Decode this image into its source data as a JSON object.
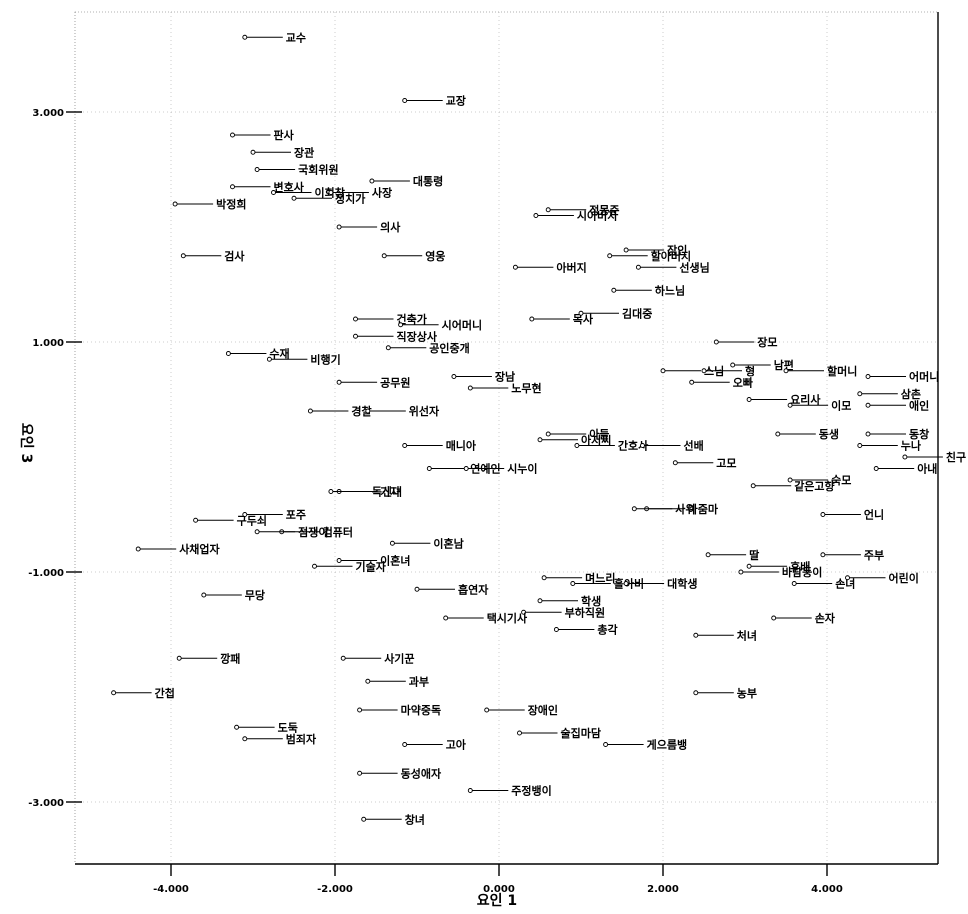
{
  "chart_data": {
    "type": "scatter",
    "title": "",
    "xlabel": "요인 1",
    "ylabel": "요인 3",
    "xlim": [
      -5.1,
      5.3
    ],
    "ylim": [
      -3.55,
      4.05
    ],
    "xticks": [
      -4000,
      -2000,
      0,
      2000,
      4000
    ],
    "yticks": [
      -3000,
      -1000,
      1000,
      3000
    ],
    "xtick_labels": [
      "-4.000",
      "-2.000",
      "0.000",
      "2.000",
      "4.000"
    ],
    "ytick_labels": [
      "-3.000",
      "-1.000",
      "1.000",
      "3.000"
    ],
    "grid": "dotted",
    "points": [
      {
        "label": "교수",
        "x": -3.1,
        "y": 3.65
      },
      {
        "label": "교장",
        "x": -1.15,
        "y": 3.1
      },
      {
        "label": "판사",
        "x": -3.25,
        "y": 2.8
      },
      {
        "label": "장관",
        "x": -3.0,
        "y": 2.65
      },
      {
        "label": "국회위원",
        "x": -2.95,
        "y": 2.5
      },
      {
        "label": "변호사",
        "x": -3.25,
        "y": 2.35
      },
      {
        "label": "대통령",
        "x": -1.55,
        "y": 2.4
      },
      {
        "label": "정몽준",
        "x": 0.6,
        "y": 2.15
      },
      {
        "label": "박정희",
        "x": -3.95,
        "y": 2.2
      },
      {
        "label": "이회창",
        "x": -2.75,
        "y": 2.3
      },
      {
        "label": "사장",
        "x": -2.05,
        "y": 2.3
      },
      {
        "label": "정치가",
        "x": -2.5,
        "y": 2.25
      },
      {
        "label": "의사",
        "x": -1.95,
        "y": 2.0
      },
      {
        "label": "시아버지",
        "x": 0.45,
        "y": 2.1
      },
      {
        "label": "장인",
        "x": 1.55,
        "y": 1.8
      },
      {
        "label": "검사",
        "x": -3.85,
        "y": 1.75
      },
      {
        "label": "영웅",
        "x": -1.4,
        "y": 1.75
      },
      {
        "label": "할아버지",
        "x": 1.35,
        "y": 1.75
      },
      {
        "label": "아버지",
        "x": 0.2,
        "y": 1.65
      },
      {
        "label": "선생님",
        "x": 1.7,
        "y": 1.65
      },
      {
        "label": "건축가",
        "x": -1.75,
        "y": 1.2
      },
      {
        "label": "하느님",
        "x": 1.4,
        "y": 1.45
      },
      {
        "label": "목사",
        "x": 0.4,
        "y": 1.2
      },
      {
        "label": "김대중",
        "x": 1.0,
        "y": 1.25
      },
      {
        "label": "장모",
        "x": 2.65,
        "y": 1.0
      },
      {
        "label": "시어머니",
        "x": -1.2,
        "y": 1.15
      },
      {
        "label": "직장상사",
        "x": -1.75,
        "y": 1.05
      },
      {
        "label": "공인중개",
        "x": -1.35,
        "y": 0.95
      },
      {
        "label": "남편",
        "x": 2.85,
        "y": 0.8
      },
      {
        "label": "할머니",
        "x": 3.5,
        "y": 0.75
      },
      {
        "label": "스님",
        "x": 2.0,
        "y": 0.75
      },
      {
        "label": "수재",
        "x": -3.3,
        "y": 0.9
      },
      {
        "label": "비행기",
        "x": -2.8,
        "y": 0.85
      },
      {
        "label": "장남",
        "x": -0.55,
        "y": 0.7
      },
      {
        "label": "형",
        "x": 2.5,
        "y": 0.75
      },
      {
        "label": "어머니",
        "x": 4.5,
        "y": 0.7
      },
      {
        "label": "공무원",
        "x": -1.95,
        "y": 0.65
      },
      {
        "label": "노무현",
        "x": -0.35,
        "y": 0.6
      },
      {
        "label": "오빠",
        "x": 2.35,
        "y": 0.65
      },
      {
        "label": "요리사",
        "x": 3.05,
        "y": 0.5
      },
      {
        "label": "삼촌",
        "x": 4.4,
        "y": 0.55
      },
      {
        "label": "아들",
        "x": 0.6,
        "y": 0.2
      },
      {
        "label": "애인",
        "x": 4.5,
        "y": 0.45
      },
      {
        "label": "이모",
        "x": 3.55,
        "y": 0.45
      },
      {
        "label": "경찰",
        "x": -2.3,
        "y": 0.4
      },
      {
        "label": "위선자",
        "x": -1.6,
        "y": 0.4
      },
      {
        "label": "간호사",
        "x": 0.95,
        "y": 0.1
      },
      {
        "label": "동생",
        "x": 3.4,
        "y": 0.2
      },
      {
        "label": "동창",
        "x": 4.5,
        "y": 0.2
      },
      {
        "label": "매니아",
        "x": -1.15,
        "y": 0.1
      },
      {
        "label": "선배",
        "x": 1.75,
        "y": 0.1
      },
      {
        "label": "누나",
        "x": 4.4,
        "y": 0.1
      },
      {
        "label": "친구",
        "x": 4.95,
        "y": 0.0
      },
      {
        "label": "기자",
        "x": -1.95,
        "y": -0.3
      },
      {
        "label": "연예인",
        "x": -0.85,
        "y": -0.1
      },
      {
        "label": "아저씨",
        "x": 0.5,
        "y": 0.15
      },
      {
        "label": "고모",
        "x": 2.15,
        "y": -0.05
      },
      {
        "label": "아내",
        "x": 4.6,
        "y": -0.1
      },
      {
        "label": "구두쇠",
        "x": -3.7,
        "y": -0.55
      },
      {
        "label": "시누이",
        "x": -0.4,
        "y": -0.1
      },
      {
        "label": "독신녀",
        "x": -2.05,
        "y": -0.3
      },
      {
        "label": "숙모",
        "x": 3.55,
        "y": -0.2
      },
      {
        "label": "포주",
        "x": -3.1,
        "y": -0.5
      },
      {
        "label": "아줌마",
        "x": 1.8,
        "y": -0.45
      },
      {
        "label": "같은고향",
        "x": 3.1,
        "y": -0.25
      },
      {
        "label": "언니",
        "x": 3.95,
        "y": -0.5
      },
      {
        "label": "컴퓨터",
        "x": -2.65,
        "y": -0.65
      },
      {
        "label": "사위",
        "x": 1.65,
        "y": -0.45
      },
      {
        "label": "딸",
        "x": 2.55,
        "y": -0.85
      },
      {
        "label": "사채업자",
        "x": -4.4,
        "y": -0.8
      },
      {
        "label": "점쟁이",
        "x": -2.95,
        "y": -0.65
      },
      {
        "label": "이혼남",
        "x": -1.3,
        "y": -0.75
      },
      {
        "label": "이혼녀",
        "x": -1.95,
        "y": -0.9
      },
      {
        "label": "주부",
        "x": 3.95,
        "y": -0.85
      },
      {
        "label": "며느리",
        "x": 0.55,
        "y": -1.05
      },
      {
        "label": "후배",
        "x": 3.05,
        "y": -0.95
      },
      {
        "label": "흡연자",
        "x": -1.0,
        "y": -1.15
      },
      {
        "label": "홀아비",
        "x": 0.9,
        "y": -1.1
      },
      {
        "label": "기술자",
        "x": -2.25,
        "y": -0.95
      },
      {
        "label": "어린이",
        "x": 4.25,
        "y": -1.05
      },
      {
        "label": "바람둥이",
        "x": 2.95,
        "y": -1.0
      },
      {
        "label": "무당",
        "x": -3.6,
        "y": -1.2
      },
      {
        "label": "대학생",
        "x": 1.55,
        "y": -1.1
      },
      {
        "label": "학생",
        "x": 0.5,
        "y": -1.25
      },
      {
        "label": "손녀",
        "x": 3.6,
        "y": -1.1
      },
      {
        "label": "부하직원",
        "x": 0.3,
        "y": -1.35
      },
      {
        "label": "택시기사",
        "x": -0.65,
        "y": -1.4
      },
      {
        "label": "총각",
        "x": 0.7,
        "y": -1.5
      },
      {
        "label": "처녀",
        "x": 2.4,
        "y": -1.55
      },
      {
        "label": "손자",
        "x": 3.35,
        "y": -1.4
      },
      {
        "label": "깡패",
        "x": -3.9,
        "y": -1.75
      },
      {
        "label": "사기꾼",
        "x": -1.9,
        "y": -1.75
      },
      {
        "label": "과부",
        "x": -1.6,
        "y": -1.95
      },
      {
        "label": "간첩",
        "x": -4.7,
        "y": -2.05
      },
      {
        "label": "농부",
        "x": 2.4,
        "y": -2.05
      },
      {
        "label": "마약중독",
        "x": -1.7,
        "y": -2.2
      },
      {
        "label": "장애인",
        "x": -0.15,
        "y": -2.2
      },
      {
        "label": "도둑",
        "x": -3.2,
        "y": -2.35
      },
      {
        "label": "범죄자",
        "x": -3.1,
        "y": -2.45
      },
      {
        "label": "고아",
        "x": -1.15,
        "y": -2.5
      },
      {
        "label": "술집마담",
        "x": 0.25,
        "y": -2.4
      },
      {
        "label": "게으름뱅",
        "x": 1.3,
        "y": -2.5
      },
      {
        "label": "동성애자",
        "x": -1.7,
        "y": -2.75
      },
      {
        "label": "주정뱅이",
        "x": -0.35,
        "y": -2.9
      },
      {
        "label": "창녀",
        "x": -1.65,
        "y": -3.15
      }
    ]
  }
}
